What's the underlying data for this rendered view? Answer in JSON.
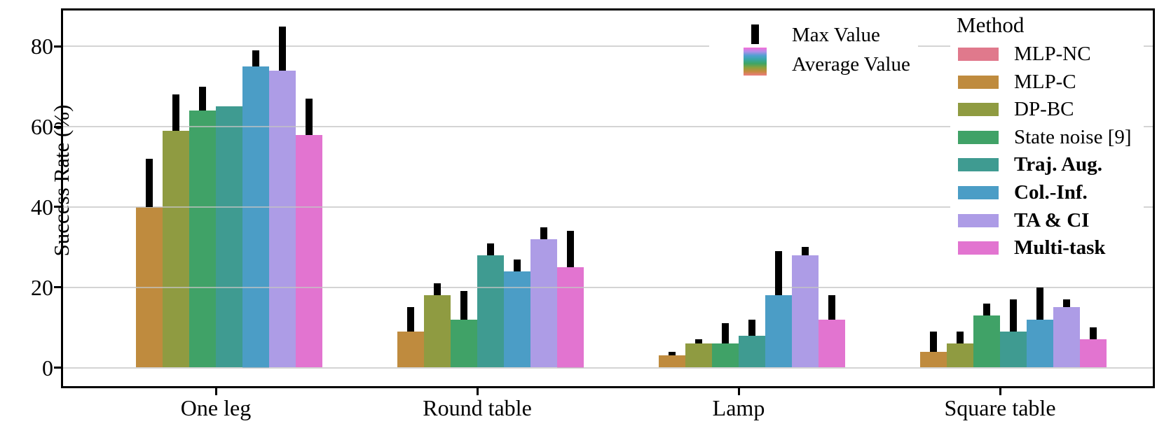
{
  "chart_data": {
    "type": "bar",
    "title": "",
    "ylabel": "Success Rate (%)",
    "yticks": [
      0,
      20,
      40,
      60,
      80
    ],
    "ylim": [
      -5,
      90
    ],
    "grid": "horizontal",
    "categories": [
      "One leg",
      "Round table",
      "Lamp",
      "Square table"
    ],
    "series": [
      {
        "name": "MLP-NC",
        "color": "#e0798c",
        "bold": false,
        "avg": [
          0,
          0,
          0,
          0
        ],
        "max": [
          0,
          0,
          0,
          0
        ]
      },
      {
        "name": "MLP-C",
        "color": "#bf8b3e",
        "bold": false,
        "avg": [
          40,
          9,
          3,
          4
        ],
        "max": [
          52,
          15,
          4,
          9
        ]
      },
      {
        "name": "DP-BC",
        "color": "#8f9b41",
        "bold": false,
        "avg": [
          59,
          18,
          6,
          6
        ],
        "max": [
          68,
          21,
          7,
          9
        ]
      },
      {
        "name": "State noise [9]",
        "color": "#40a267",
        "bold": false,
        "avg": [
          64,
          12,
          6,
          13
        ],
        "max": [
          70,
          19,
          11,
          16
        ]
      },
      {
        "name": "Traj. Aug.",
        "color": "#3f9b91",
        "bold": true,
        "avg": [
          65,
          28,
          8,
          9
        ],
        "max": [
          65,
          31,
          12,
          17
        ]
      },
      {
        "name": "Col.-Inf.",
        "color": "#4b9dc6",
        "bold": true,
        "avg": [
          75,
          24,
          18,
          12
        ],
        "max": [
          79,
          27,
          29,
          20
        ]
      },
      {
        "name": "TA & CI",
        "color": "#ad9ce6",
        "bold": true,
        "avg": [
          74,
          32,
          28,
          15
        ],
        "max": [
          85,
          35,
          30,
          17
        ]
      },
      {
        "name": "Multi-task",
        "color": "#e274d0",
        "bold": true,
        "avg": [
          58,
          25,
          12,
          7
        ],
        "max": [
          67,
          34,
          18,
          10
        ]
      }
    ],
    "value_legend": {
      "max_label": "Max Value",
      "avg_label": "Average Value",
      "max_icon_color": "#000000",
      "avg_gradient_colors": [
        "#f76ed9",
        "#b18fe9",
        "#51a0d1",
        "#38a7a4",
        "#3ea565",
        "#8aa13c",
        "#c68a3f",
        "#ee7c80"
      ]
    },
    "method_legend": {
      "title": "Method"
    },
    "legend_position": "upper right",
    "error_bar_color": "#000000"
  }
}
